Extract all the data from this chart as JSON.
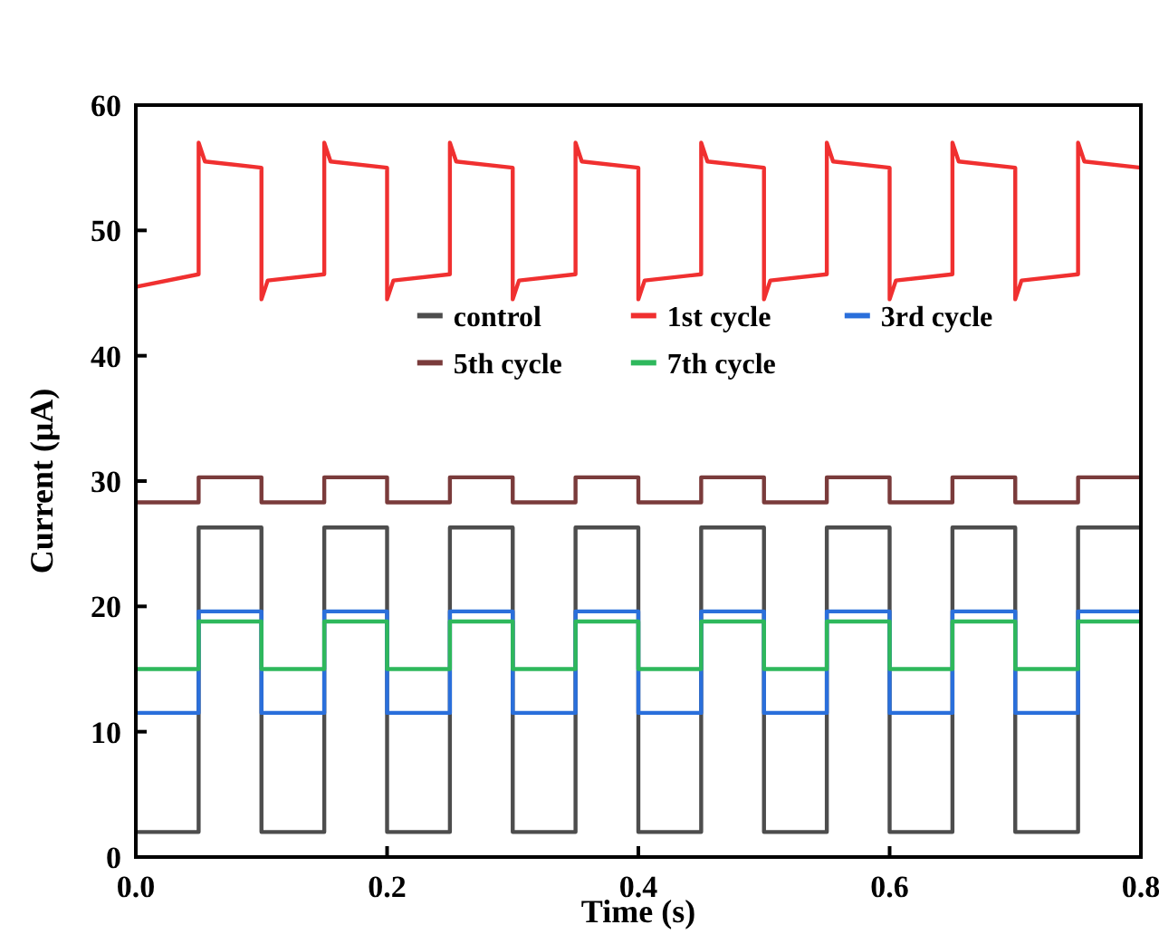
{
  "chart_data": {
    "type": "line",
    "xlabel": "Time (s)",
    "ylabel": "Current (μA)",
    "x": [
      0,
      0.05,
      0.05,
      0.1,
      0.1,
      0.15,
      0.15,
      0.2,
      0.2,
      0.25,
      0.25,
      0.3,
      0.3,
      0.35,
      0.35,
      0.4,
      0.4,
      0.45,
      0.45,
      0.5,
      0.5,
      0.55,
      0.55,
      0.6,
      0.6,
      0.65,
      0.65,
      0.7,
      0.7,
      0.75,
      0.75,
      0.8
    ],
    "xlim": [
      0,
      0.8
    ],
    "xticks": [
      {
        "value": 0,
        "label": "0.0"
      },
      0.2,
      0.4,
      0.6,
      0.8
    ],
    "ylim": [
      0,
      60
    ],
    "yticks": [
      0,
      10,
      20,
      30,
      40,
      50,
      60
    ],
    "grid": false,
    "legend": "center",
    "line_style": "solid",
    "marker": "none",
    "series": [
      {
        "name": "control",
        "color": "#4d4d4d",
        "values": [
          2,
          2,
          26.3,
          26.3,
          2,
          2,
          26.3,
          26.3,
          2,
          2,
          26.3,
          26.3,
          2,
          2,
          26.3,
          26.3,
          2,
          2,
          26.3,
          26.3,
          2,
          2,
          26.3,
          26.3,
          2,
          2,
          26.3,
          26.3,
          2,
          2,
          26.3,
          26.3
        ]
      },
      {
        "name": "1st cycle",
        "color": "#f03030",
        "x": [
          0,
          0.05,
          0.05,
          0.055,
          0.1,
          0.1,
          0.105,
          0.15,
          0.15,
          0.155,
          0.2,
          0.2,
          0.205,
          0.25,
          0.25,
          0.255,
          0.3,
          0.3,
          0.305,
          0.35,
          0.35,
          0.355,
          0.4,
          0.4,
          0.405,
          0.45,
          0.45,
          0.455,
          0.5,
          0.5,
          0.505,
          0.55,
          0.55,
          0.555,
          0.6,
          0.6,
          0.605,
          0.65,
          0.65,
          0.655,
          0.7,
          0.7,
          0.705,
          0.75,
          0.75,
          0.755,
          0.8
        ],
        "values": [
          45.5,
          46.5,
          57,
          55.5,
          55,
          44.5,
          46,
          46.5,
          57,
          55.5,
          55,
          44.5,
          46,
          46.5,
          57,
          55.5,
          55,
          44.5,
          46,
          46.5,
          57,
          55.5,
          55,
          44.5,
          46,
          46.5,
          57,
          55.5,
          55,
          44.5,
          46,
          46.5,
          57,
          55.5,
          55,
          44.5,
          46,
          46.5,
          57,
          55.5,
          55,
          44.5,
          46,
          46.5,
          57,
          55.5,
          55
        ]
      },
      {
        "name": "3rd cycle",
        "color": "#2a6fdb",
        "values": [
          11.5,
          11.5,
          19.6,
          19.6,
          11.5,
          11.5,
          19.6,
          19.6,
          11.5,
          11.5,
          19.6,
          19.6,
          11.5,
          11.5,
          19.6,
          19.6,
          11.5,
          11.5,
          19.6,
          19.6,
          11.5,
          11.5,
          19.6,
          19.6,
          11.5,
          11.5,
          19.6,
          19.6,
          11.5,
          11.5,
          19.6,
          19.6
        ]
      },
      {
        "name": "5th cycle",
        "color": "#7a3b3b",
        "values": [
          28.3,
          28.3,
          30.3,
          30.3,
          28.3,
          28.3,
          30.3,
          30.3,
          28.3,
          28.3,
          30.3,
          30.3,
          28.3,
          28.3,
          30.3,
          30.3,
          28.3,
          28.3,
          30.3,
          30.3,
          28.3,
          28.3,
          30.3,
          30.3,
          28.3,
          28.3,
          30.3,
          30.3,
          28.3,
          28.3,
          30.3,
          30.3
        ]
      },
      {
        "name": "7th cycle",
        "color": "#2eb85c",
        "values": [
          15,
          15,
          18.8,
          18.8,
          15,
          15,
          18.8,
          18.8,
          15,
          15,
          18.8,
          18.8,
          15,
          15,
          18.8,
          18.8,
          15,
          15,
          18.8,
          18.8,
          15,
          15,
          18.8,
          18.8,
          15,
          15,
          18.8,
          18.8,
          15,
          15,
          18.8,
          18.8
        ]
      }
    ]
  }
}
